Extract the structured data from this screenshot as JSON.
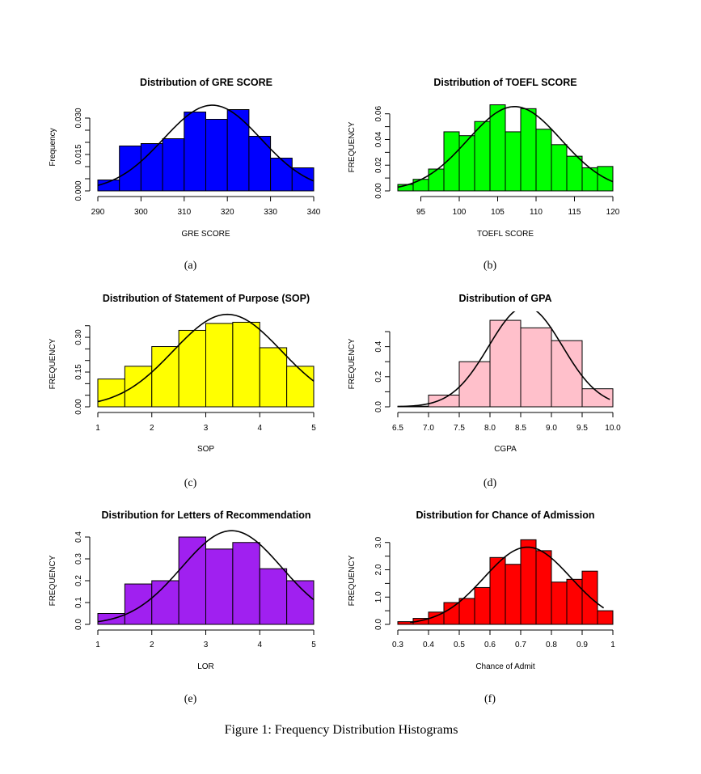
{
  "figure": {
    "caption": "Figure 1: Frequency Distribution Histograms"
  },
  "chart_data": [
    {
      "type": "bar",
      "title": "Distribution of GRE SCORE",
      "xlabel": "GRE SCORE",
      "ylabel": "Frequency",
      "sublabel": "(a)",
      "bar_color": "#0000ff",
      "bin_edges": [
        290,
        295,
        300,
        305,
        310,
        315,
        320,
        325,
        330,
        335,
        340
      ],
      "values": [
        0.0045,
        0.0185,
        0.0195,
        0.0215,
        0.0325,
        0.0295,
        0.0335,
        0.0225,
        0.0135,
        0.0095
      ],
      "xlim": [
        290,
        340
      ],
      "ylim": [
        0,
        0.036
      ],
      "xticks": [
        290,
        300,
        310,
        320,
        330,
        340
      ],
      "yticks": [
        0,
        0.005,
        0.01,
        0.015,
        0.02,
        0.025,
        0.03
      ],
      "ytick_labels": [
        "0.000",
        "",
        "",
        "0.015",
        "",
        "",
        "0.030"
      ],
      "normal_curve": {
        "mean": 316.5,
        "sd": 11.3,
        "x_range": [
          290,
          340
        ]
      }
    },
    {
      "type": "bar",
      "title": "Distribution of TOEFL SCORE",
      "xlabel": "TOEFL SCORE",
      "ylabel": "FREQUENCY",
      "sublabel": "(b)",
      "bar_color": "#00ff00",
      "bin_edges": [
        92,
        94,
        96,
        98,
        100,
        102,
        104,
        106,
        108,
        110,
        112,
        114,
        116,
        118,
        120
      ],
      "values": [
        0.005,
        0.009,
        0.017,
        0.046,
        0.043,
        0.054,
        0.067,
        0.046,
        0.064,
        0.048,
        0.036,
        0.027,
        0.018,
        0.019
      ],
      "xlim": [
        92,
        120
      ],
      "ylim": [
        0,
        0.068
      ],
      "xticks": [
        95,
        100,
        105,
        110,
        115,
        120
      ],
      "yticks": [
        0,
        0.01,
        0.02,
        0.03,
        0.04,
        0.05,
        0.06
      ],
      "ytick_labels": [
        "0.00",
        "",
        "0.02",
        "",
        "0.04",
        "",
        "0.06"
      ],
      "normal_curve": {
        "mean": 107.2,
        "sd": 6.08,
        "x_range": [
          92,
          120
        ]
      }
    },
    {
      "type": "bar",
      "title": "Distribution of Statement of Purpose (SOP)",
      "xlabel": "SOP",
      "ylabel": "FREQUENCY",
      "sublabel": "(c)",
      "bar_color": "#ffff00",
      "bin_edges": [
        1,
        1.5,
        2,
        2.5,
        3,
        3.5,
        4,
        4.5,
        5
      ],
      "values": [
        0.12,
        0.175,
        0.26,
        0.33,
        0.36,
        0.365,
        0.255,
        0.175
      ],
      "xlim": [
        1,
        5
      ],
      "ylim": [
        0,
        0.37
      ],
      "xticks": [
        1,
        2,
        3,
        4,
        5
      ],
      "yticks": [
        0,
        0.05,
        0.1,
        0.15,
        0.2,
        0.25,
        0.3,
        0.35
      ],
      "ytick_labels": [
        "0.00",
        "",
        "",
        "0.15",
        "",
        "",
        "0.30",
        ""
      ],
      "normal_curve": {
        "mean": 3.4,
        "sd": 1.0,
        "x_range": [
          1,
          5
        ]
      }
    },
    {
      "type": "bar",
      "title": "Distribution of GPA",
      "xlabel": "CGPA",
      "ylabel": "FREQUENCY",
      "sublabel": "(d)",
      "bar_color": "#ffc0cb",
      "bin_edges": [
        6.5,
        7.0,
        7.5,
        8.0,
        8.5,
        9.0,
        9.5,
        10.0
      ],
      "values": [
        0.004,
        0.078,
        0.3,
        0.575,
        0.525,
        0.44,
        0.12
      ],
      "xlim": [
        6.5,
        10.0
      ],
      "ylim": [
        0,
        0.57
      ],
      "xticks": [
        6.5,
        7.0,
        7.5,
        8.0,
        8.5,
        9.0,
        9.5,
        10.0
      ],
      "xtick_labels": [
        "6.5",
        "7.0",
        "7.5",
        "8.0",
        "8.5",
        "9.0",
        "9.5",
        "10.0"
      ],
      "yticks": [
        0,
        0.1,
        0.2,
        0.3,
        0.4,
        0.5
      ],
      "ytick_labels": [
        "0.0",
        "",
        "0.2",
        "",
        "0.4",
        ""
      ],
      "normal_curve": {
        "mean": 8.58,
        "sd": 0.6,
        "x_range": [
          6.5,
          9.95
        ]
      }
    },
    {
      "type": "bar",
      "title": "Distribution for Letters of Recommendation",
      "xlabel": "LOR",
      "ylabel": "FREQUENCY",
      "sublabel": "(e)",
      "bar_color": "#a020f0",
      "bin_edges": [
        1,
        1.5,
        2,
        2.5,
        3,
        3.5,
        4,
        4.5,
        5
      ],
      "values": [
        0.05,
        0.185,
        0.2,
        0.4,
        0.345,
        0.375,
        0.255,
        0.2
      ],
      "xlim": [
        1,
        5
      ],
      "ylim": [
        0,
        0.4
      ],
      "xticks": [
        1,
        2,
        3,
        4,
        5
      ],
      "yticks": [
        0,
        0.1,
        0.2,
        0.3,
        0.4
      ],
      "ytick_labels": [
        "0.0",
        "0.1",
        "0.2",
        "0.3",
        "0.4"
      ],
      "normal_curve": {
        "mean": 3.48,
        "sd": 0.93,
        "x_range": [
          1,
          5
        ]
      }
    },
    {
      "type": "bar",
      "title": "Distribution for Chance of Admission",
      "xlabel": "Chance of Admit",
      "ylabel": "FREQUENCY",
      "sublabel": "(f)",
      "bar_color": "#ff0000",
      "bin_edges": [
        0.3,
        0.35,
        0.4,
        0.45,
        0.5,
        0.55,
        0.6,
        0.65,
        0.7,
        0.75,
        0.8,
        0.85,
        0.9,
        0.95,
        1.0
      ],
      "values": [
        0.1,
        0.22,
        0.45,
        0.8,
        0.95,
        1.35,
        2.45,
        2.2,
        3.1,
        2.7,
        1.55,
        1.65,
        1.95,
        0.5
      ],
      "xlim": [
        0.3,
        1.0
      ],
      "ylim": [
        0,
        3.2
      ],
      "xticks": [
        0.3,
        0.4,
        0.5,
        0.6,
        0.7,
        0.8,
        0.9,
        1.0
      ],
      "yticks": [
        0,
        0.5,
        1.0,
        1.5,
        2.0,
        2.5,
        3.0
      ],
      "ytick_labels": [
        "0.0",
        "",
        "1.0",
        "",
        "2.0",
        "",
        "3.0"
      ],
      "normal_curve": {
        "mean": 0.722,
        "sd": 0.141,
        "x_range": [
          0.34,
          0.97
        ]
      }
    }
  ]
}
